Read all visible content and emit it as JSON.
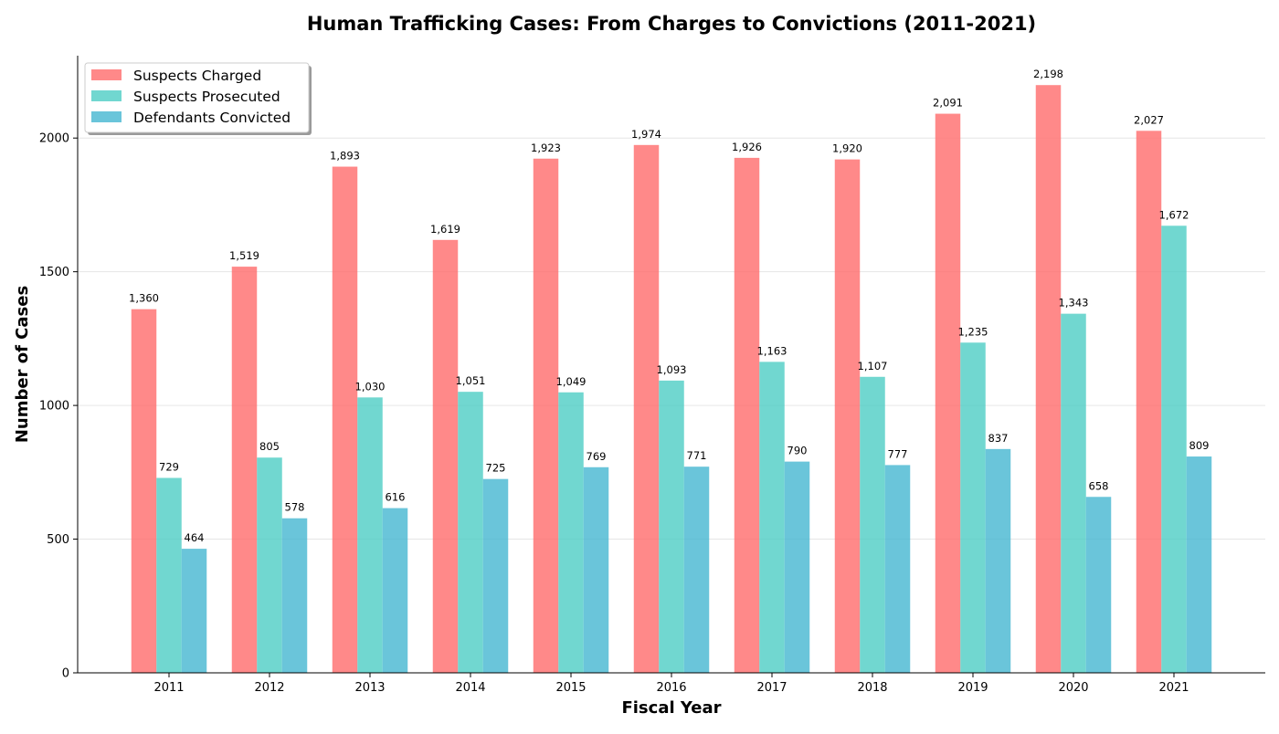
{
  "chart_data": {
    "type": "bar",
    "title": "Human Trafficking Cases: From Charges to Convictions (2011-2021)",
    "xlabel": "Fiscal Year",
    "ylabel": "Number of Cases",
    "categories": [
      "2011",
      "2012",
      "2013",
      "2014",
      "2015",
      "2016",
      "2017",
      "2018",
      "2019",
      "2020",
      "2021"
    ],
    "series": [
      {
        "name": "Suspects Charged",
        "color": "#ff6b6b",
        "values": [
          1360,
          1519,
          1893,
          1619,
          1923,
          1974,
          1926,
          1920,
          2091,
          2198,
          2027
        ],
        "labels": [
          "1,360",
          "1,519",
          "1,893",
          "1,619",
          "1,923",
          "1,974",
          "1,926",
          "1,920",
          "2,091",
          "2,198",
          "2,027"
        ]
      },
      {
        "name": "Suspects Prosecuted",
        "color": "#4ecdc4",
        "values": [
          729,
          805,
          1030,
          1051,
          1049,
          1093,
          1163,
          1107,
          1235,
          1343,
          1672
        ],
        "labels": [
          "729",
          "805",
          "1,030",
          "1,051",
          "1,049",
          "1,093",
          "1,163",
          "1,107",
          "1,235",
          "1,343",
          "1,672"
        ]
      },
      {
        "name": "Defendants Convicted",
        "color": "#45b7d1",
        "values": [
          464,
          578,
          616,
          725,
          769,
          771,
          790,
          777,
          837,
          658,
          809
        ],
        "labels": [
          "464",
          "578",
          "616",
          "725",
          "769",
          "771",
          "790",
          "777",
          "837",
          "658",
          "809"
        ]
      }
    ],
    "yticks": [
      0,
      500,
      1000,
      1500,
      2000
    ],
    "ytick_labels": [
      "0",
      "500",
      "1000",
      "1500",
      "2000"
    ],
    "ylim": [
      0,
      2308
    ],
    "grid": "y",
    "legend_position": "top-left"
  }
}
